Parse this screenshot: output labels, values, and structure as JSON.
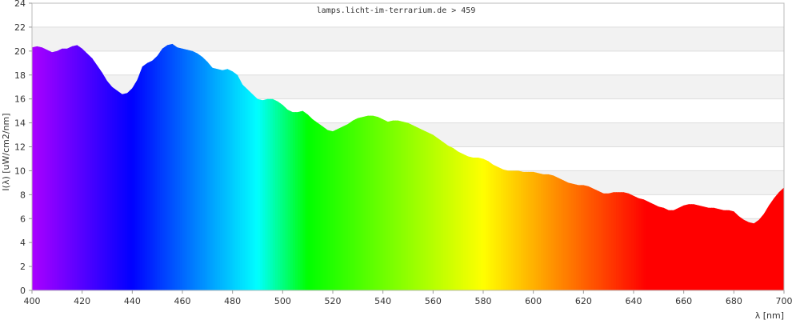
{
  "chart_data": {
    "type": "area",
    "title": "lamps.licht-im-terrarium.de > 459",
    "xlabel": "λ [nm]",
    "ylabel": "I(λ)  [uW/cm2/nm]",
    "xlim": [
      400,
      700
    ],
    "ylim": [
      0,
      24
    ],
    "x_ticks": [
      400,
      420,
      440,
      460,
      480,
      500,
      520,
      540,
      560,
      580,
      600,
      620,
      640,
      660,
      680,
      700
    ],
    "y_ticks": [
      0,
      2,
      4,
      6,
      8,
      10,
      12,
      14,
      16,
      18,
      20,
      22,
      24
    ],
    "grid": "horizontal alternating bands",
    "fill": "visible spectrum colors by wavelength",
    "series": [
      {
        "x": [
          400,
          402,
          404,
          406,
          408,
          410,
          412,
          414,
          416,
          418,
          420,
          422,
          424,
          426,
          428,
          430,
          432,
          434,
          436,
          438,
          440,
          442,
          444,
          446,
          448,
          450,
          452,
          454,
          456,
          458,
          460,
          462,
          464,
          466,
          468,
          470,
          472,
          474,
          476,
          478,
          480,
          482,
          484,
          486,
          488,
          490,
          492,
          494,
          496,
          498,
          500,
          502,
          504,
          506,
          508,
          510,
          512,
          514,
          516,
          518,
          520,
          522,
          524,
          526,
          528,
          530,
          532,
          534,
          536,
          538,
          540,
          542,
          544,
          546,
          548,
          550,
          552,
          554,
          556,
          558,
          560,
          562,
          564,
          566,
          568,
          570,
          572,
          574,
          576,
          578,
          580,
          582,
          584,
          586,
          588,
          590,
          592,
          594,
          596,
          598,
          600,
          602,
          604,
          606,
          608,
          610,
          612,
          614,
          616,
          618,
          620,
          622,
          624,
          626,
          628,
          630,
          632,
          634,
          636,
          638,
          640,
          642,
          644,
          646,
          648,
          650,
          652,
          654,
          656,
          658,
          660,
          662,
          664,
          666,
          668,
          670,
          672,
          674,
          676,
          678,
          680,
          682,
          684,
          686,
          688,
          690,
          692,
          694,
          696,
          698,
          700
        ],
        "y": [
          20.3,
          20.4,
          20.3,
          20.1,
          19.9,
          20.0,
          20.2,
          20.2,
          20.4,
          20.5,
          20.2,
          19.8,
          19.4,
          18.8,
          18.2,
          17.5,
          17.0,
          16.7,
          16.4,
          16.5,
          16.9,
          17.6,
          18.7,
          19.0,
          19.2,
          19.6,
          20.2,
          20.5,
          20.6,
          20.3,
          20.2,
          20.1,
          20.0,
          19.8,
          19.5,
          19.1,
          18.6,
          18.5,
          18.4,
          18.5,
          18.3,
          18.0,
          17.2,
          16.8,
          16.4,
          16.0,
          15.9,
          16.0,
          16.0,
          15.8,
          15.5,
          15.1,
          14.9,
          14.9,
          15.0,
          14.7,
          14.3,
          14.0,
          13.7,
          13.4,
          13.3,
          13.5,
          13.7,
          13.9,
          14.2,
          14.4,
          14.5,
          14.6,
          14.6,
          14.5,
          14.3,
          14.1,
          14.2,
          14.2,
          14.1,
          14.0,
          13.8,
          13.6,
          13.4,
          13.2,
          13.0,
          12.7,
          12.4,
          12.1,
          11.9,
          11.6,
          11.4,
          11.2,
          11.1,
          11.1,
          11.0,
          10.8,
          10.5,
          10.3,
          10.1,
          10.0,
          10.0,
          10.0,
          9.9,
          9.9,
          9.9,
          9.8,
          9.7,
          9.7,
          9.6,
          9.4,
          9.2,
          9.0,
          8.9,
          8.8,
          8.8,
          8.7,
          8.5,
          8.3,
          8.1,
          8.1,
          8.2,
          8.2,
          8.2,
          8.1,
          7.9,
          7.7,
          7.6,
          7.4,
          7.2,
          7.0,
          6.9,
          6.7,
          6.7,
          6.9,
          7.1,
          7.2,
          7.2,
          7.1,
          7.0,
          6.9,
          6.9,
          6.8,
          6.7,
          6.7,
          6.6,
          6.2,
          5.9,
          5.7,
          5.6,
          5.9,
          6.4,
          7.1,
          7.7,
          8.2,
          8.6
        ]
      }
    ]
  }
}
